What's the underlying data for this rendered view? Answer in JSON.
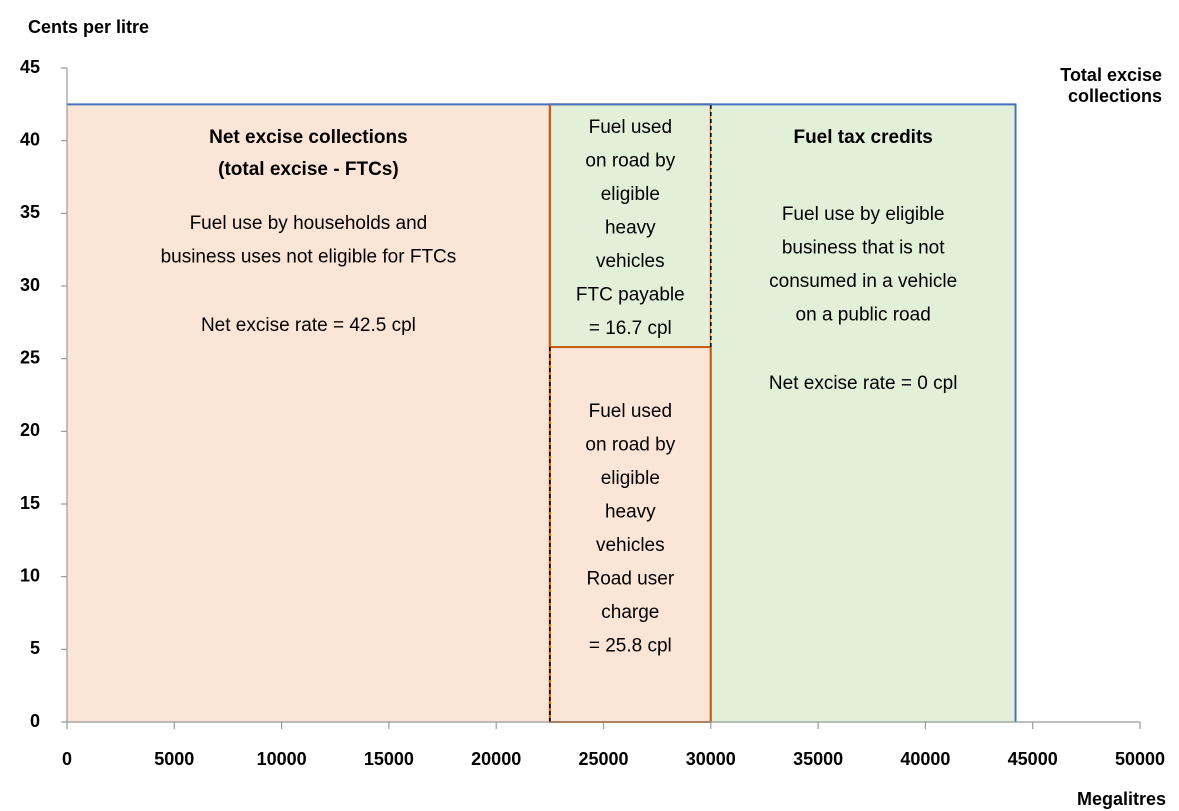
{
  "chart_data": {
    "type": "block",
    "y_label": "Cents per litre",
    "x_label": "Megalitres",
    "xlim": [
      0,
      50000
    ],
    "xticks": [
      0,
      5000,
      10000,
      15000,
      20000,
      25000,
      30000,
      35000,
      40000,
      45000,
      50000
    ],
    "ylim": [
      0,
      45
    ],
    "yticks": [
      0,
      5,
      10,
      15,
      20,
      25,
      30,
      35,
      40,
      45
    ],
    "total": {
      "label": [
        "Total excise",
        "collections"
      ],
      "value": 42.5,
      "x": 44200,
      "color": "#4472c4"
    },
    "columns": [
      {
        "x": [
          0,
          22500
        ],
        "segments": [
          {
            "value": 42.5,
            "color": "#fbe5d6",
            "heading_color": "#c55a11",
            "heading": [
              "Net excise collections",
              "(total excise - FTCs)"
            ],
            "lines": [
              "Fuel use by households and",
              "business uses not eligible for FTCs"
            ],
            "note": "Net excise rate = 42.5 cpl"
          }
        ]
      },
      {
        "x": [
          22500,
          30000
        ],
        "segments": [
          {
            "value": 25.8,
            "color": "#fbe5d6",
            "lines": [
              "Fuel used",
              "on road by",
              "eligible",
              "heavy",
              "vehicles",
              "Road user",
              "charge",
              "= 25.8 cpl"
            ]
          },
          {
            "value": 16.7,
            "color": "#e2f0d9",
            "lines": [
              "Fuel used",
              "on road by",
              "eligible",
              "heavy",
              "vehicles",
              "FTC payable",
              "= 16.7 cpl"
            ]
          }
        ]
      },
      {
        "x": [
          30000,
          44200
        ],
        "segments": [
          {
            "value": 42.5,
            "color": "#e2f0d9",
            "heading_color": "#548235",
            "heading": [
              "Fuel tax credits"
            ],
            "lines": [
              "Fuel use by eligible",
              "business that is not",
              "consumed in a vehicle",
              "on a public road"
            ],
            "note": "Net excise rate = 0 cpl"
          }
        ]
      }
    ]
  }
}
